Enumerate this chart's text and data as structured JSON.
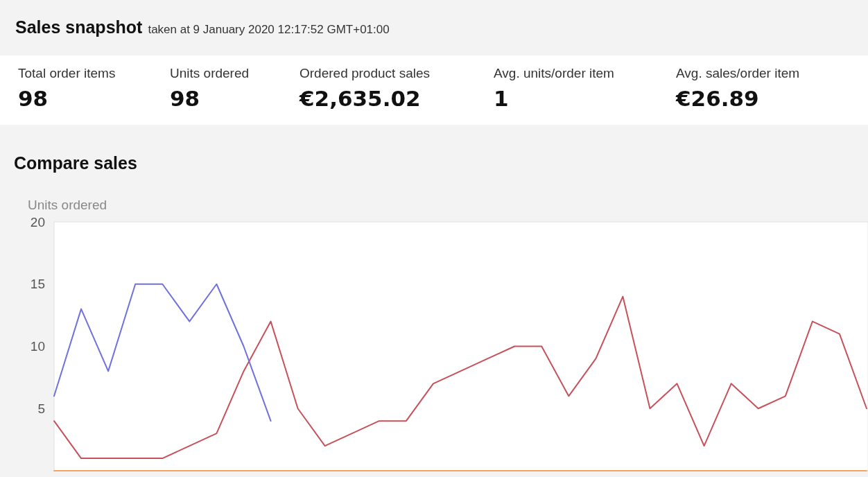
{
  "chart_data": [
    {
      "type": "other",
      "title": "Sales snapshot",
      "subtitle": "taken at 9 January 2020 12:17:52 GMT+01:00",
      "annotations": [
        "Total order items",
        "98",
        "Units ordered",
        "98",
        "Ordered product sales",
        "€2,635.02",
        "Avg. units/order item",
        "1",
        "Avg. sales/order item",
        "€26.89"
      ]
    },
    {
      "type": "line",
      "title": "Compare sales",
      "ylabel": "Units ordered",
      "categories": [
        null,
        null,
        null,
        null,
        null,
        null,
        null,
        null,
        null,
        null,
        null,
        null,
        null,
        null,
        null,
        null,
        null,
        null,
        null,
        null,
        null,
        null,
        null,
        null,
        null,
        null,
        null,
        null,
        null,
        null,
        null
      ],
      "ylim": [
        0,
        20
      ],
      "yticks": [
        5,
        10,
        15,
        20
      ],
      "tick_labels": "y",
      "series": [
        {
          "color": "#f4a460",
          "values": [
            0,
            0,
            0,
            0,
            0,
            0,
            0,
            0,
            0,
            0,
            0,
            0,
            0,
            0,
            0,
            0,
            0,
            0,
            0,
            0,
            0,
            0,
            0,
            0,
            0,
            0,
            0,
            0,
            0,
            0,
            0
          ]
        },
        {
          "color": "#c8505a",
          "values": [
            4,
            1,
            1,
            1,
            1,
            2,
            3,
            8,
            12,
            5,
            2,
            3,
            4,
            4,
            7,
            8,
            9,
            10,
            10,
            6,
            9,
            14,
            5,
            7,
            2,
            7,
            5,
            6,
            12,
            11,
            5
          ]
        },
        {
          "color": "#7070e0",
          "values": [
            6,
            13,
            8,
            15,
            15,
            12,
            15,
            10,
            4,
            null,
            null,
            null,
            null,
            null,
            null,
            null,
            null,
            null,
            null,
            null,
            null,
            null,
            null,
            null,
            null,
            null,
            null,
            null,
            null,
            null,
            null
          ]
        }
      ]
    }
  ]
}
